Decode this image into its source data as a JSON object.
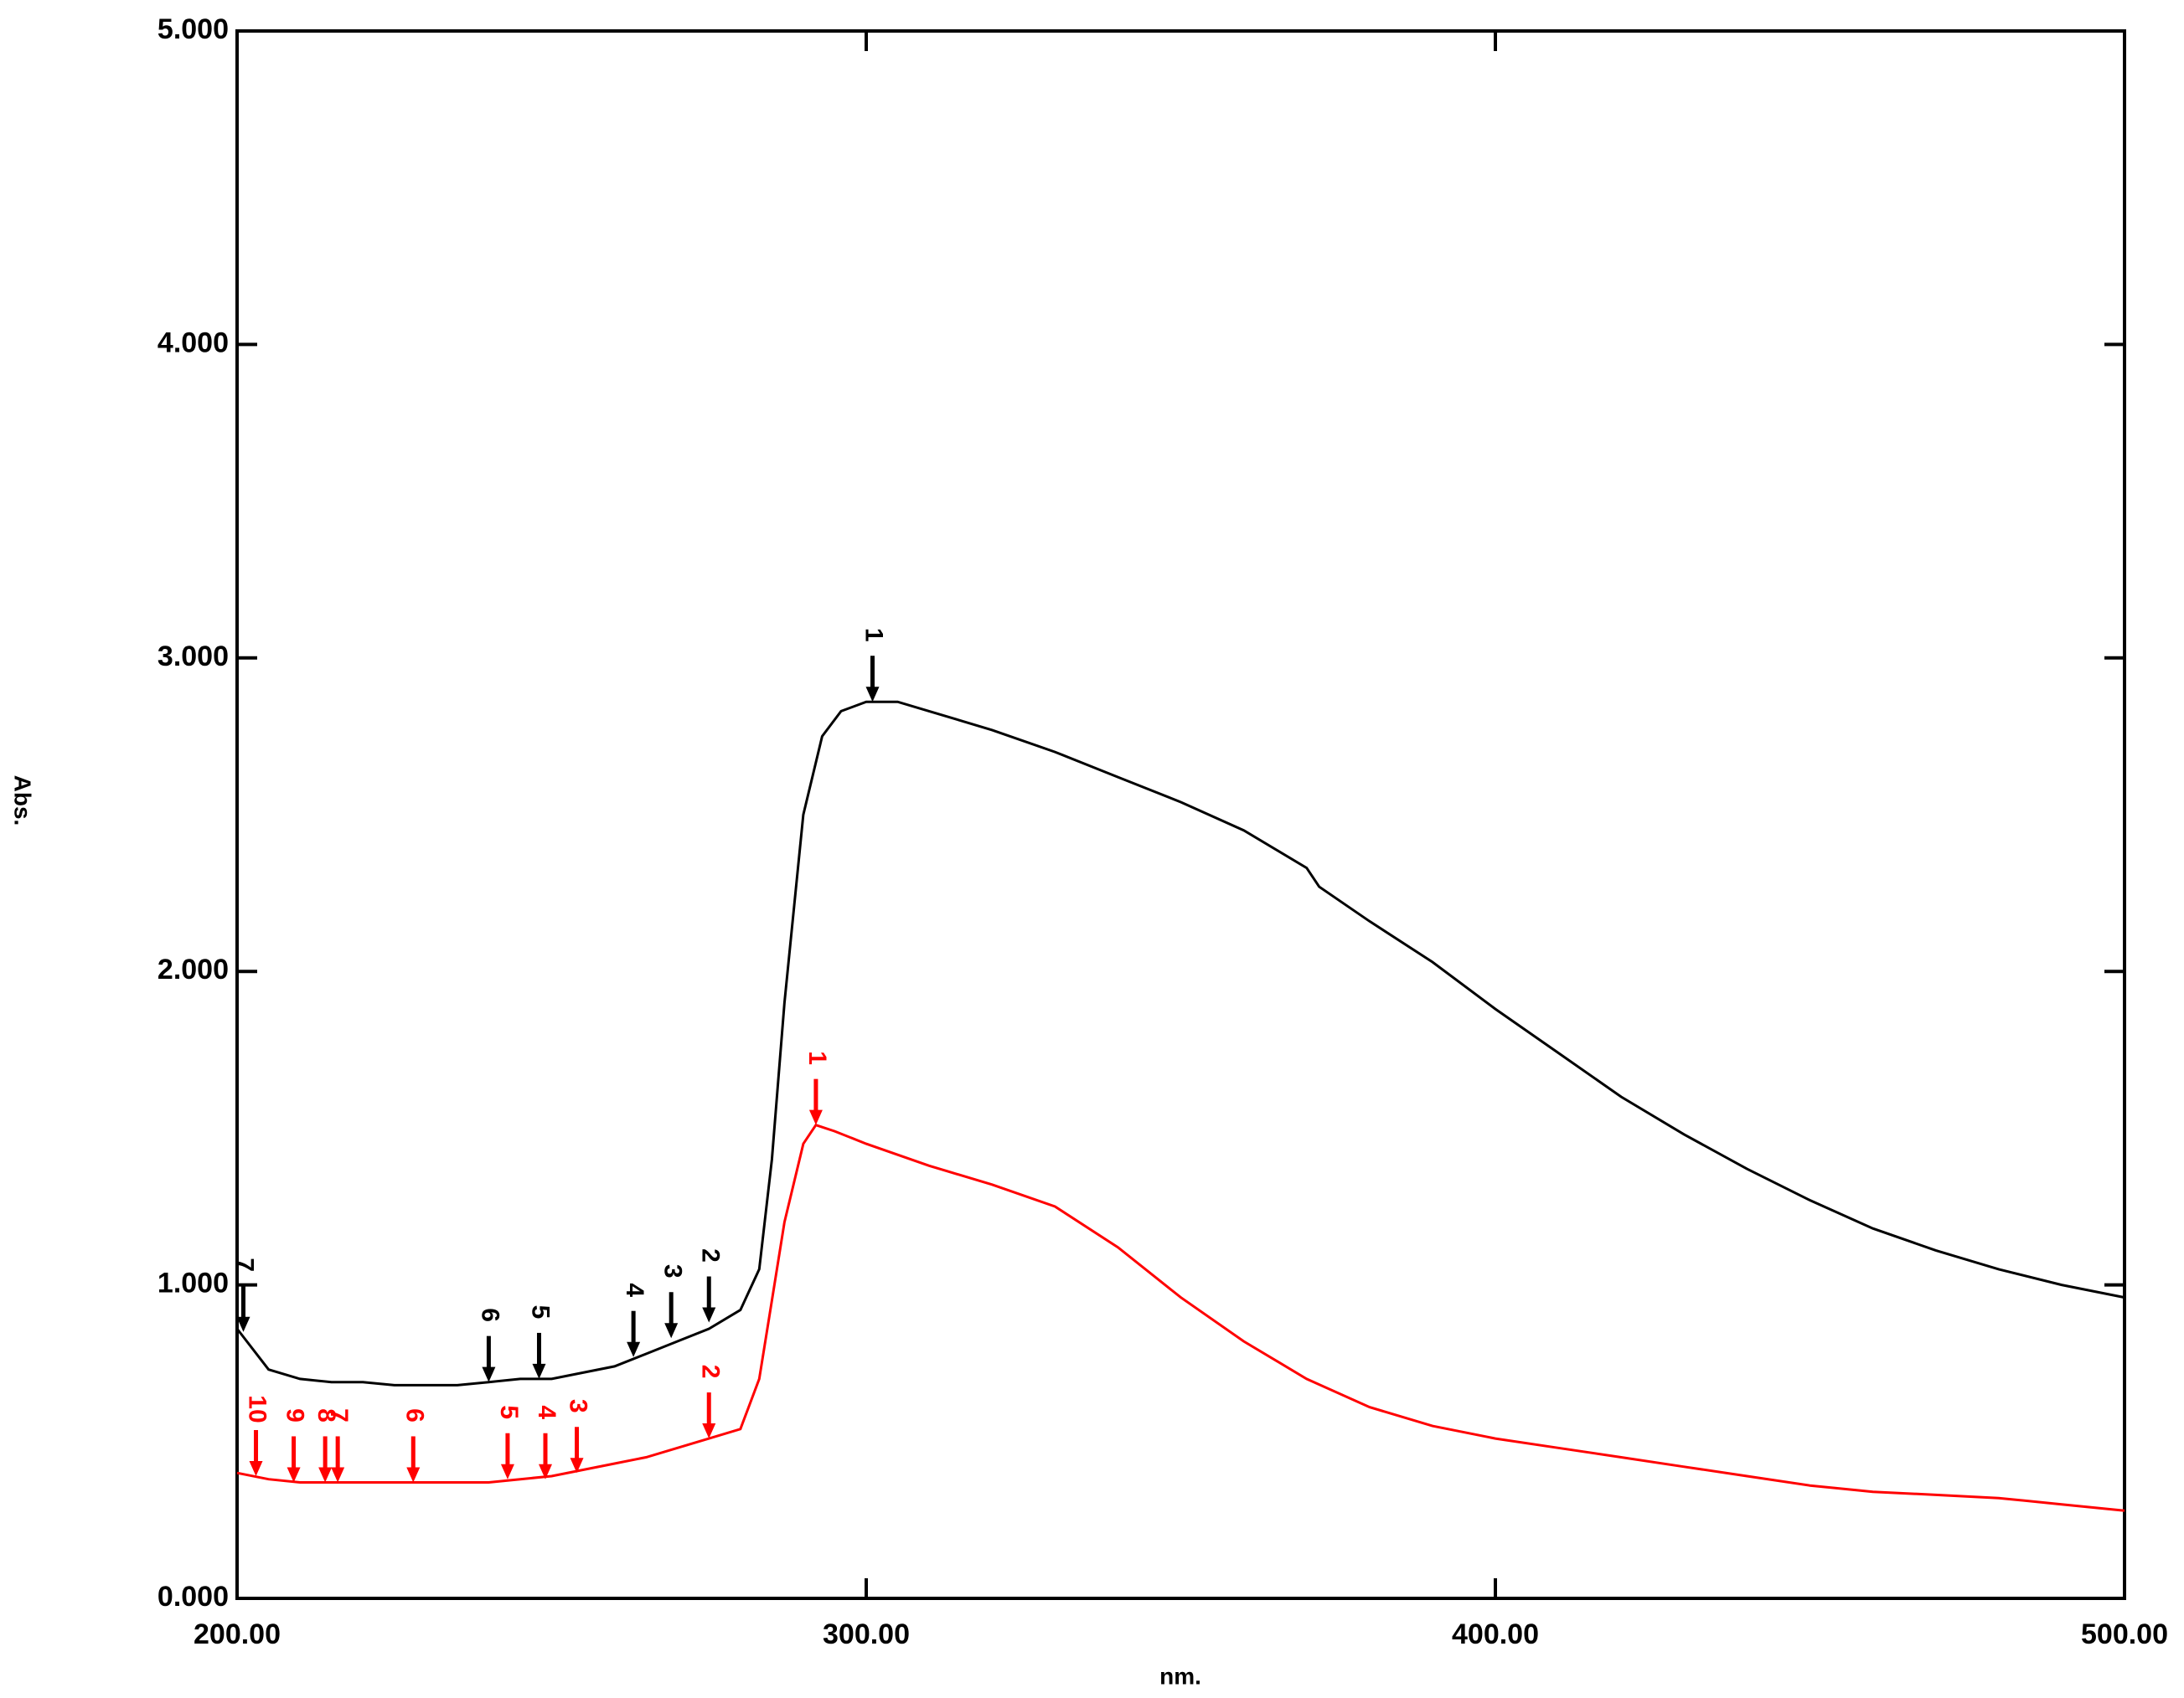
{
  "chart_data": {
    "type": "line",
    "x_label": "nm.",
    "y_label": "Abs.",
    "xlim": [
      200,
      500
    ],
    "ylim": [
      0,
      5
    ],
    "xticks": [
      {
        "value": 200,
        "label": "200.00"
      },
      {
        "value": 300,
        "label": "300.00"
      },
      {
        "value": 400,
        "label": "400.00"
      },
      {
        "value": 500,
        "label": "500.00"
      }
    ],
    "yticks": [
      {
        "value": 0,
        "label": "0.000"
      },
      {
        "value": 1,
        "label": "1.000"
      },
      {
        "value": 2,
        "label": "2.000"
      },
      {
        "value": 3,
        "label": "3.000"
      },
      {
        "value": 4,
        "label": "4.000"
      },
      {
        "value": 5,
        "label": "5.000"
      }
    ],
    "series": [
      {
        "color": "#000000",
        "x": [
          200,
          205,
          210,
          215,
          220,
          225,
          230,
          235,
          240,
          245,
          250,
          255,
          260,
          265,
          270,
          275,
          280,
          283,
          285,
          287,
          290,
          293,
          296,
          300,
          305,
          310,
          320,
          330,
          340,
          350,
          360,
          370,
          372,
          380,
          390,
          400,
          410,
          420,
          430,
          440,
          450,
          460,
          470,
          480,
          490,
          500
        ],
        "values": [
          0.86,
          0.73,
          0.7,
          0.69,
          0.69,
          0.68,
          0.68,
          0.68,
          0.69,
          0.7,
          0.7,
          0.72,
          0.74,
          0.78,
          0.82,
          0.86,
          0.92,
          1.05,
          1.4,
          1.9,
          2.5,
          2.75,
          2.83,
          2.86,
          2.86,
          2.83,
          2.77,
          2.7,
          2.62,
          2.54,
          2.45,
          2.33,
          2.27,
          2.16,
          2.03,
          1.88,
          1.74,
          1.6,
          1.48,
          1.37,
          1.27,
          1.18,
          1.11,
          1.05,
          1.0,
          0.96
        ],
        "peaks": [
          {
            "label": "1",
            "x": 301,
            "y": 2.86
          },
          {
            "label": "2",
            "x": 275,
            "y": 0.88
          },
          {
            "label": "3",
            "x": 269,
            "y": 0.83
          },
          {
            "label": "4",
            "x": 263,
            "y": 0.77
          },
          {
            "label": "5",
            "x": 248,
            "y": 0.7
          },
          {
            "label": "6",
            "x": 240,
            "y": 0.69
          },
          {
            "label": "7",
            "x": 201,
            "y": 0.85
          }
        ]
      },
      {
        "color": "#ff0000",
        "x": [
          200,
          205,
          210,
          215,
          220,
          225,
          230,
          235,
          240,
          245,
          250,
          255,
          260,
          265,
          270,
          275,
          280,
          283,
          285,
          287,
          290,
          292,
          295,
          300,
          310,
          320,
          330,
          340,
          350,
          360,
          370,
          380,
          390,
          400,
          410,
          420,
          430,
          440,
          450,
          460,
          470,
          480,
          490,
          500
        ],
        "values": [
          0.4,
          0.38,
          0.37,
          0.37,
          0.37,
          0.37,
          0.37,
          0.37,
          0.37,
          0.38,
          0.39,
          0.41,
          0.43,
          0.45,
          0.48,
          0.51,
          0.54,
          0.7,
          0.95,
          1.2,
          1.45,
          1.51,
          1.49,
          1.45,
          1.38,
          1.32,
          1.25,
          1.12,
          0.96,
          0.82,
          0.7,
          0.61,
          0.55,
          0.51,
          0.48,
          0.45,
          0.42,
          0.39,
          0.36,
          0.34,
          0.33,
          0.32,
          0.3,
          0.28
        ],
        "peaks": [
          {
            "label": "1",
            "x": 292,
            "y": 1.51
          },
          {
            "label": "2",
            "x": 275,
            "y": 0.51
          },
          {
            "label": "3",
            "x": 254,
            "y": 0.4
          },
          {
            "label": "4",
            "x": 249,
            "y": 0.38
          },
          {
            "label": "5",
            "x": 243,
            "y": 0.38
          },
          {
            "label": "6",
            "x": 228,
            "y": 0.37
          },
          {
            "label": "7",
            "x": 216,
            "y": 0.37
          },
          {
            "label": "8",
            "x": 214,
            "y": 0.37
          },
          {
            "label": "9",
            "x": 209,
            "y": 0.37
          },
          {
            "label": "10",
            "x": 203,
            "y": 0.39
          }
        ]
      }
    ]
  }
}
